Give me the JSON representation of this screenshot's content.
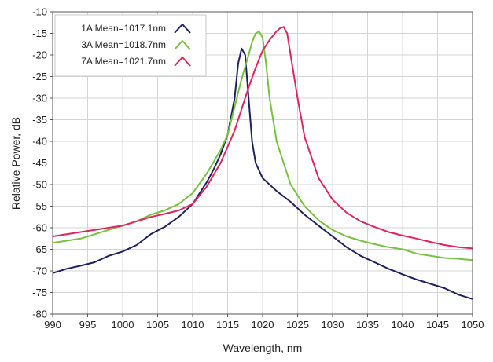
{
  "chart_data": {
    "type": "line",
    "xlabel": "Wavelength, nm",
    "ylabel": "Relative Power, dB",
    "xlim": [
      990,
      1050
    ],
    "ylim": [
      -80,
      -10
    ],
    "xticks": [
      990,
      995,
      1000,
      1005,
      1010,
      1015,
      1020,
      1025,
      1030,
      1035,
      1040,
      1045,
      1050
    ],
    "yticks": [
      -10,
      -15,
      -20,
      -25,
      -30,
      -35,
      -40,
      -45,
      -50,
      -55,
      -60,
      -65,
      -70,
      -75,
      -80
    ],
    "grid": true,
    "legend": "top-left",
    "series": [
      {
        "name": "1A Mean=1017.1nm",
        "color": "#1f2060",
        "x": [
          990,
          992,
          994,
          996,
          998,
          1000,
          1002,
          1004,
          1006,
          1008,
          1010,
          1012,
          1013,
          1014,
          1015,
          1016,
          1016.5,
          1017,
          1017.5,
          1018,
          1018.5,
          1019,
          1020,
          1022,
          1024,
          1026,
          1028,
          1030,
          1032,
          1034,
          1036,
          1038,
          1040,
          1042,
          1044,
          1046,
          1048,
          1050
        ],
        "y": [
          -70.5,
          -69.5,
          -68.8,
          -68,
          -66.5,
          -65.5,
          -64,
          -61.5,
          -59.8,
          -57.5,
          -54.5,
          -49.5,
          -46.5,
          -43,
          -38.5,
          -30,
          -22,
          -18.5,
          -20,
          -30,
          -40,
          -45,
          -48.5,
          -51.5,
          -54,
          -57,
          -59.5,
          -62,
          -64.5,
          -66.5,
          -68,
          -69.5,
          -70.8,
          -72,
          -73,
          -74,
          -75.5,
          -76.5
        ]
      },
      {
        "name": "3A Mean=1018.7nm",
        "color": "#77c13f",
        "x": [
          990,
          992,
          994,
          996,
          998,
          1000,
          1002,
          1004,
          1006,
          1008,
          1010,
          1012,
          1014,
          1015,
          1016,
          1017,
          1018,
          1018.5,
          1019,
          1019.5,
          1020,
          1020.5,
          1021,
          1022,
          1024,
          1026,
          1028,
          1030,
          1032,
          1034,
          1036,
          1038,
          1040,
          1042,
          1044,
          1046,
          1048,
          1050
        ],
        "y": [
          -63.5,
          -63,
          -62.5,
          -61.5,
          -60.5,
          -59.5,
          -58.5,
          -57,
          -56,
          -54.5,
          -52,
          -47.5,
          -42,
          -38.5,
          -32,
          -25.5,
          -20,
          -17,
          -15,
          -14.6,
          -16,
          -22,
          -30,
          -40,
          -50,
          -55,
          -58.3,
          -60.5,
          -62,
          -63,
          -63.8,
          -64.5,
          -65,
          -66,
          -66.5,
          -67,
          -67.2,
          -67.5
        ]
      },
      {
        "name": "7A Mean=1021.7nm",
        "color": "#e0245e",
        "x": [
          990,
          992,
          994,
          996,
          998,
          1000,
          1002,
          1004,
          1006,
          1008,
          1010,
          1012,
          1014,
          1016,
          1017,
          1018,
          1019,
          1020,
          1021,
          1021.5,
          1022,
          1022.5,
          1023,
          1023.5,
          1024,
          1025,
          1026,
          1028,
          1030,
          1032,
          1034,
          1036,
          1038,
          1040,
          1042,
          1044,
          1046,
          1048,
          1050
        ],
        "y": [
          -62,
          -61.5,
          -61,
          -60.5,
          -60,
          -59.5,
          -58.5,
          -57.5,
          -56.8,
          -56,
          -54.5,
          -50.5,
          -45,
          -37.5,
          -32.5,
          -27.5,
          -23,
          -19,
          -16.5,
          -15.5,
          -14.5,
          -13.8,
          -13.5,
          -15,
          -20,
          -30,
          -39,
          -48.5,
          -53.5,
          -56.5,
          -58.5,
          -59.8,
          -61,
          -61.8,
          -62.5,
          -63.3,
          -64,
          -64.5,
          -64.8
        ]
      }
    ]
  }
}
